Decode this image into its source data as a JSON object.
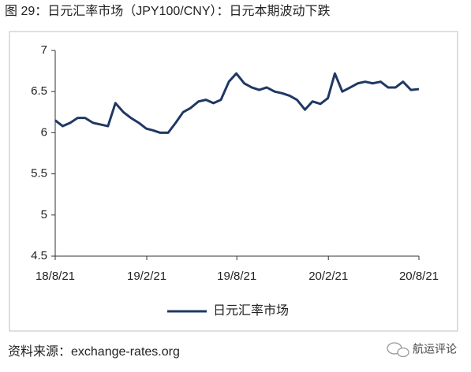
{
  "chart_data": {
    "type": "line",
    "title": "图 29：日元汇率市场（JPY100/CNY）：日元本期波动下跌",
    "x": [
      "2018-08-21",
      "2018-09-05",
      "2018-09-20",
      "2018-10-05",
      "2018-10-20",
      "2018-11-05",
      "2018-11-20",
      "2018-12-05",
      "2018-12-20",
      "2019-01-05",
      "2019-01-20",
      "2019-02-05",
      "2019-02-20",
      "2019-03-05",
      "2019-03-20",
      "2019-04-05",
      "2019-04-20",
      "2019-05-05",
      "2019-05-20",
      "2019-06-05",
      "2019-06-20",
      "2019-07-05",
      "2019-07-20",
      "2019-08-05",
      "2019-08-20",
      "2019-09-05",
      "2019-09-20",
      "2019-10-05",
      "2019-10-20",
      "2019-11-05",
      "2019-11-20",
      "2019-12-05",
      "2019-12-20",
      "2020-01-05",
      "2020-01-20",
      "2020-02-05",
      "2020-02-20",
      "2020-03-05",
      "2020-03-20",
      "2020-04-05",
      "2020-04-20",
      "2020-05-05",
      "2020-05-20",
      "2020-06-05",
      "2020-06-20",
      "2020-07-05",
      "2020-07-20",
      "2020-08-05",
      "2020-08-21"
    ],
    "series": [
      {
        "name": "日元汇率市场",
        "color": "#1f3864",
        "values": [
          6.15,
          6.08,
          6.12,
          6.18,
          6.18,
          6.12,
          6.1,
          6.08,
          6.36,
          6.25,
          6.18,
          6.12,
          6.05,
          6.03,
          6.0,
          6.0,
          6.12,
          6.25,
          6.3,
          6.38,
          6.4,
          6.36,
          6.4,
          6.62,
          6.72,
          6.6,
          6.55,
          6.52,
          6.55,
          6.5,
          6.48,
          6.45,
          6.4,
          6.28,
          6.38,
          6.35,
          6.42,
          6.72,
          6.5,
          6.55,
          6.6,
          6.62,
          6.6,
          6.62,
          6.55,
          6.55,
          6.62,
          6.52,
          6.53
        ]
      }
    ],
    "xlim": [
      "2018-08-21",
      "2020-08-21"
    ],
    "xticks": [
      {
        "value": "2018-08-21",
        "label": "18/8/21"
      },
      {
        "value": "2019-02-21",
        "label": "19/2/21"
      },
      {
        "value": "2019-08-21",
        "label": "19/8/21"
      },
      {
        "value": "2020-02-21",
        "label": "20/2/21"
      },
      {
        "value": "2020-08-21",
        "label": "20/8/21"
      }
    ],
    "ylim": [
      4.5,
      7
    ],
    "yticks": [
      4.5,
      5,
      5.5,
      6,
      6.5,
      7
    ],
    "grid": false,
    "legend": "bottom"
  },
  "source": "资料来源：exchange-rates.org",
  "watermark": "航运评论"
}
